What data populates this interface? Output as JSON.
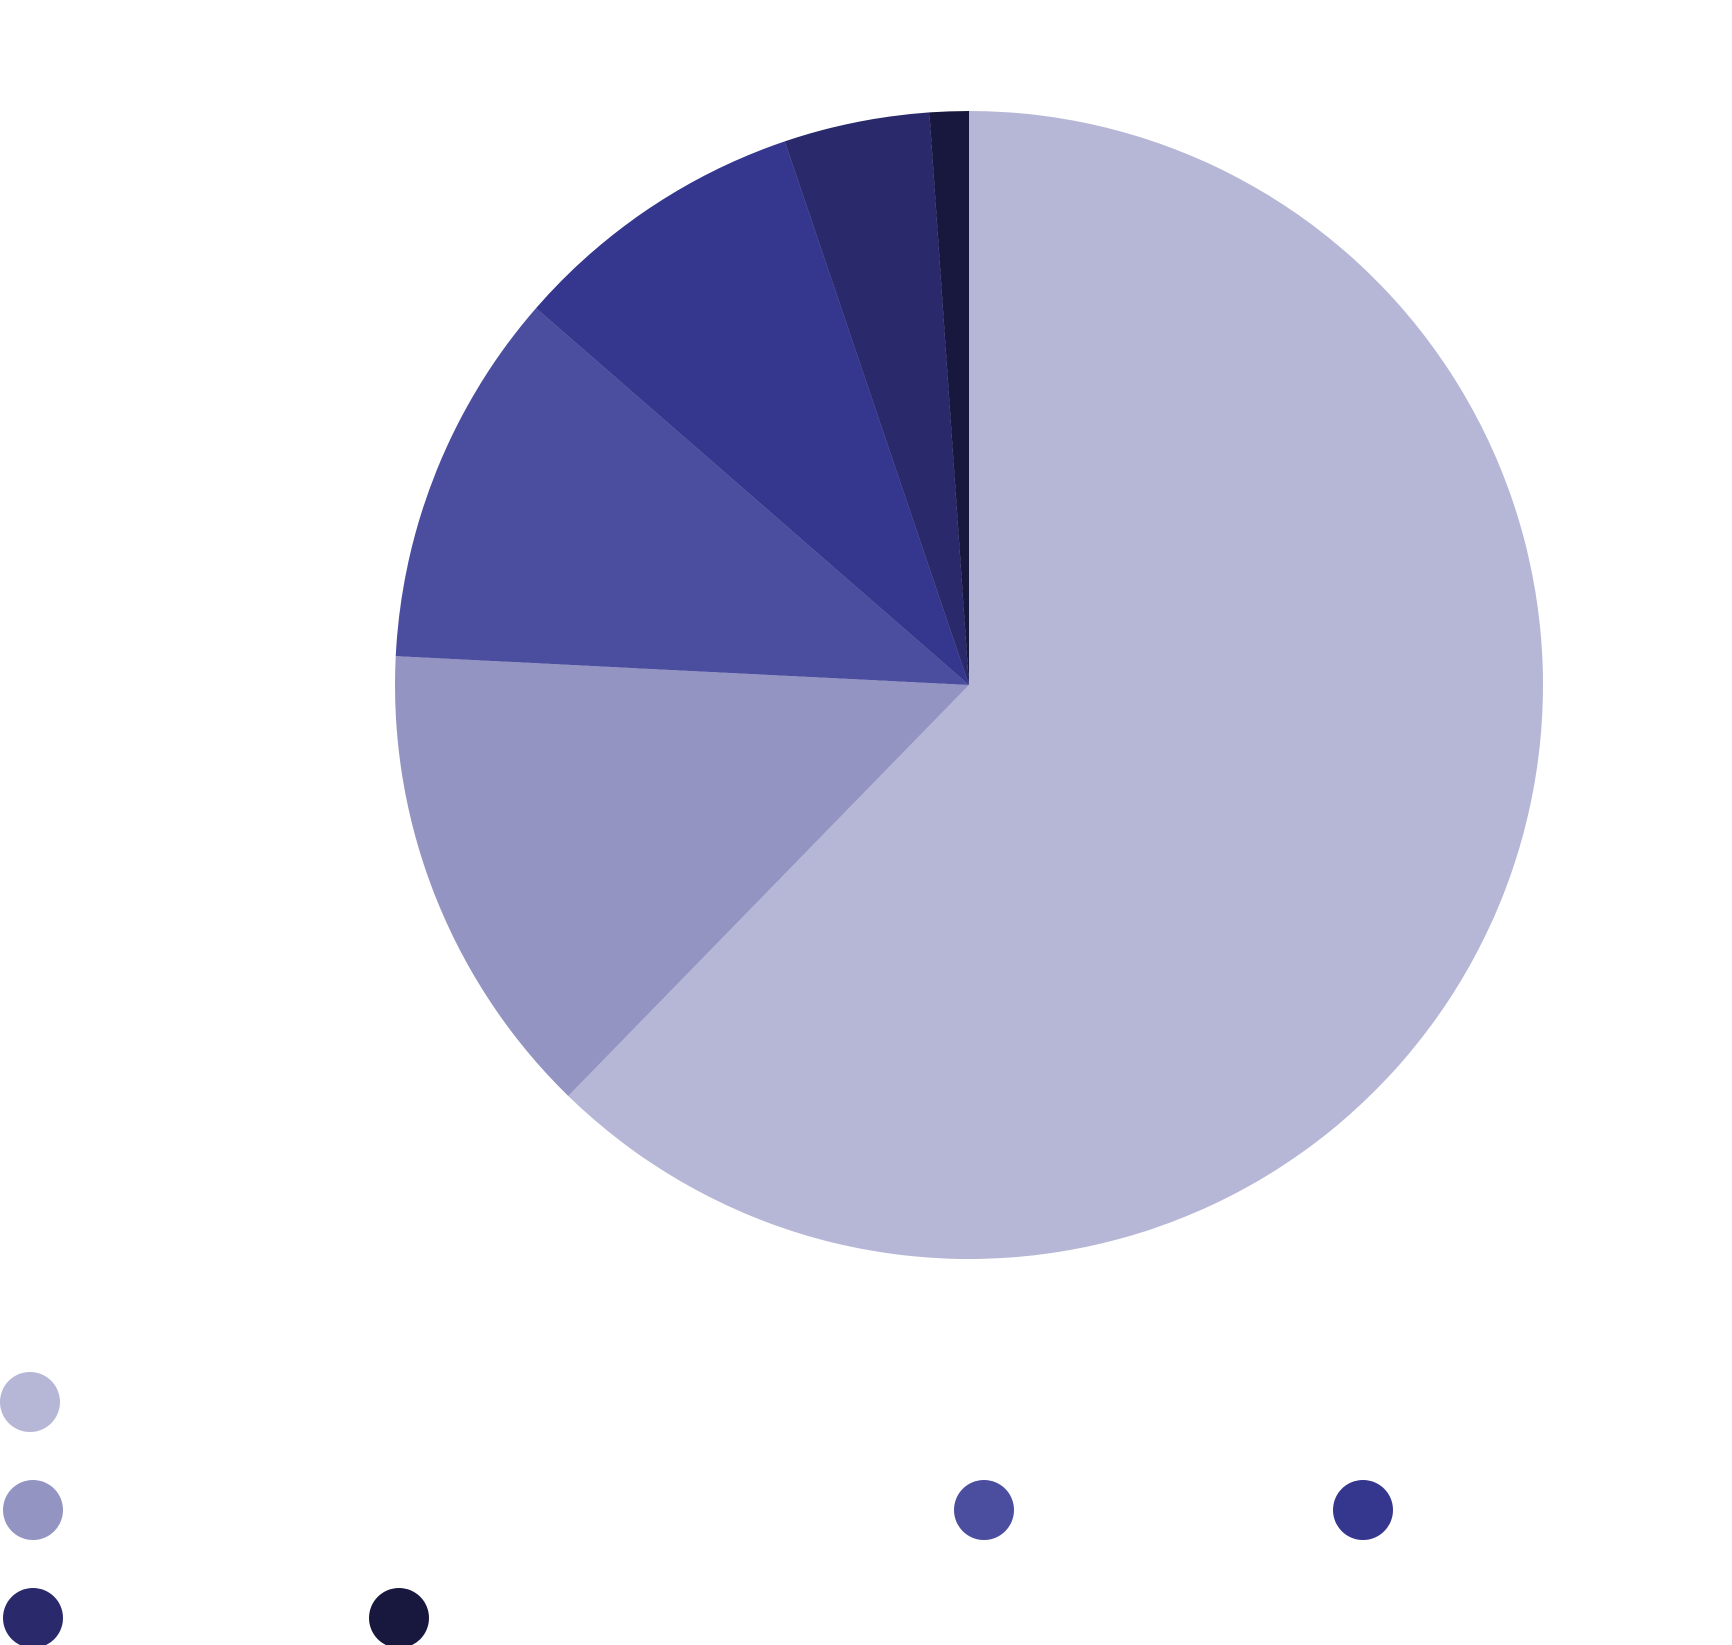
{
  "chart_data": {
    "type": "pie",
    "title": "",
    "start_angle_deg": 0,
    "direction": "clockwise",
    "legend_position": "bottom-left",
    "slices": [
      {
        "label": "",
        "value": 62.3,
        "color": "#B6B7D6"
      },
      {
        "label": "",
        "value": 13.5,
        "color": "#9494C3"
      },
      {
        "label": "",
        "value": 10.6,
        "color": "#4B4E9E"
      },
      {
        "label": "",
        "value": 8.4,
        "color": "#35368D"
      },
      {
        "label": "",
        "value": 4.1,
        "color": "#29296B"
      },
      {
        "label": "",
        "value": 1.1,
        "color": "#18183F"
      }
    ]
  }
}
